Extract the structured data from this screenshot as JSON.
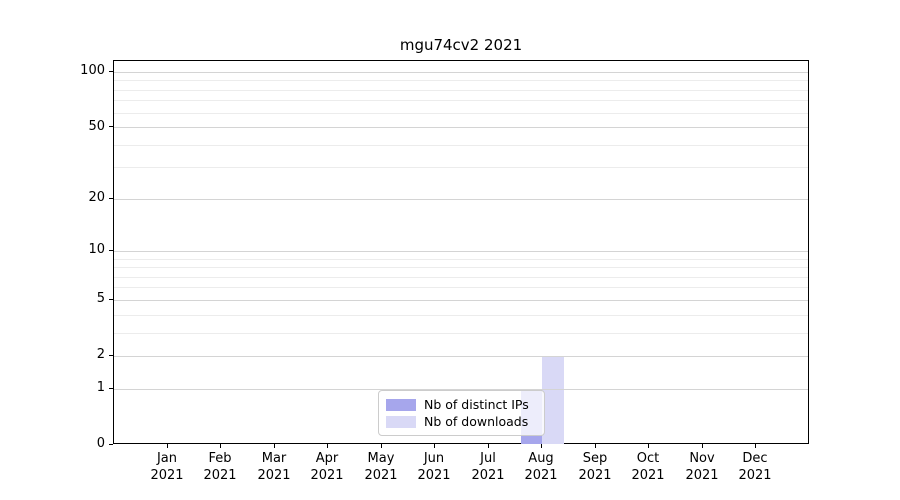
{
  "chart_data": {
    "type": "bar",
    "title": "mgu74cv2 2021",
    "categories": [
      "Jan 2021",
      "Feb 2021",
      "Mar 2021",
      "Apr 2021",
      "May 2021",
      "Jun 2021",
      "Jul 2021",
      "Aug 2021",
      "Sep 2021",
      "Oct 2021",
      "Nov 2021",
      "Dec 2021"
    ],
    "series": [
      {
        "name": "Nb of distinct IPs",
        "color": "#a6a6ec",
        "values": [
          0,
          0,
          0,
          0,
          0,
          0,
          0,
          1,
          0,
          0,
          0,
          0
        ]
      },
      {
        "name": "Nb of downloads",
        "color": "#d9d9f6",
        "values": [
          0,
          0,
          0,
          0,
          0,
          0,
          0,
          2,
          0,
          0,
          0,
          0
        ]
      }
    ],
    "xlabel": "",
    "ylabel": "",
    "yscale": "log1p",
    "yticks": [
      0,
      1,
      2,
      5,
      10,
      20,
      50,
      100
    ],
    "minor_gridlines": [
      3,
      4,
      6,
      7,
      8,
      9,
      30,
      40,
      60,
      70,
      80,
      90
    ],
    "ylim": [
      0,
      115
    ],
    "grid": true,
    "legend_position": "lower center",
    "bar_width_fraction": 0.4,
    "colors": {
      "axis": "#000000",
      "grid_major": "#d4d4d4",
      "grid_minor": "#ececec",
      "legend_border": "#cccccc",
      "background": "#ffffff"
    }
  }
}
